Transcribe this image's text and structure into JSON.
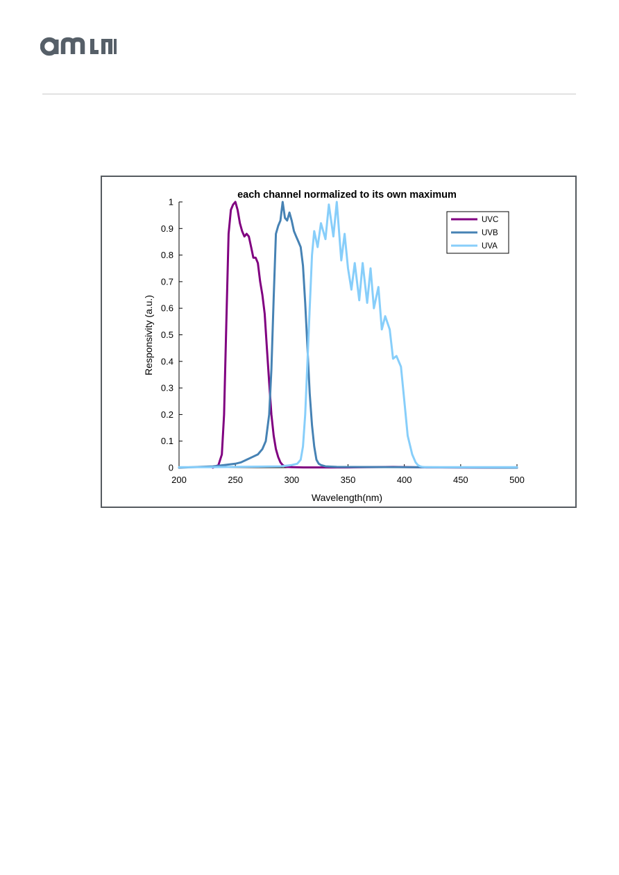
{
  "logo": {
    "text": "ams",
    "color": "#565f68"
  },
  "colors": {
    "rule": "#c8c8c8",
    "frame": "#555a5f"
  },
  "chart_data": {
    "type": "line",
    "title": "each channel normalized to its own maximum",
    "xlabel": "Wavelength(nm)",
    "ylabel": "Responsivity (a.u.)",
    "xlim": [
      200,
      500
    ],
    "ylim": [
      0,
      1
    ],
    "xticks": [
      200,
      250,
      300,
      350,
      400,
      450,
      500
    ],
    "yticks": [
      0,
      0.1,
      0.2,
      0.3,
      0.4,
      0.5,
      0.6,
      0.7,
      0.8,
      0.9,
      1
    ],
    "ytick_labels": [
      "0",
      "0.1",
      "0.2",
      "0.3",
      "0.4",
      "0.5",
      "0.6",
      "0.7",
      "0.8",
      "0.9",
      "1"
    ],
    "grid": false,
    "legend_position": "top-right",
    "series": [
      {
        "name": "UVC",
        "color": "#800080",
        "x": [
          230,
          235,
          238,
          240,
          242,
          244,
          246,
          248,
          250,
          252,
          254,
          256,
          258,
          260,
          262,
          264,
          266,
          268,
          270,
          272,
          274,
          276,
          278,
          280,
          282,
          284,
          286,
          288,
          290,
          292,
          294,
          296,
          300,
          310,
          320,
          350,
          390,
          420,
          500
        ],
        "y": [
          0,
          0.01,
          0.05,
          0.2,
          0.55,
          0.88,
          0.97,
          0.99,
          1.0,
          0.97,
          0.92,
          0.89,
          0.87,
          0.88,
          0.87,
          0.83,
          0.79,
          0.79,
          0.77,
          0.7,
          0.65,
          0.58,
          0.45,
          0.32,
          0.2,
          0.12,
          0.07,
          0.04,
          0.02,
          0.01,
          0.005,
          0.003,
          0.002,
          0.001,
          0.001,
          0.001,
          0.003,
          0.001,
          0
        ]
      },
      {
        "name": "UVB",
        "color": "#4682b4",
        "x": [
          200,
          230,
          240,
          250,
          255,
          260,
          265,
          270,
          274,
          277,
          280,
          282,
          284,
          286,
          288,
          290,
          292,
          294,
          296,
          298,
          300,
          302,
          304,
          306,
          308,
          310,
          312,
          314,
          316,
          318,
          320,
          322,
          324,
          326,
          330,
          340,
          400,
          500
        ],
        "y": [
          0,
          0.005,
          0.01,
          0.015,
          0.02,
          0.03,
          0.04,
          0.05,
          0.07,
          0.1,
          0.2,
          0.37,
          0.64,
          0.88,
          0.91,
          0.93,
          1.0,
          0.94,
          0.93,
          0.96,
          0.93,
          0.89,
          0.87,
          0.85,
          0.83,
          0.76,
          0.62,
          0.45,
          0.28,
          0.16,
          0.08,
          0.03,
          0.015,
          0.01,
          0.005,
          0.003,
          0.002,
          0
        ]
      },
      {
        "name": "UVA",
        "color": "#87cefa",
        "x": [
          200,
          230,
          290,
          300,
          305,
          308,
          310,
          312,
          314,
          316,
          318,
          320,
          323,
          326,
          330,
          333,
          337,
          340,
          344,
          347,
          350,
          353,
          356,
          360,
          363,
          367,
          370,
          373,
          377,
          380,
          383,
          387,
          390,
          393,
          397,
          400,
          403,
          407,
          410,
          412,
          414,
          416,
          418,
          420,
          423,
          430,
          440,
          500
        ],
        "y": [
          0.002,
          0.002,
          0.005,
          0.01,
          0.015,
          0.03,
          0.08,
          0.2,
          0.4,
          0.6,
          0.8,
          0.89,
          0.83,
          0.92,
          0.86,
          0.99,
          0.87,
          1.0,
          0.78,
          0.88,
          0.75,
          0.67,
          0.77,
          0.63,
          0.77,
          0.62,
          0.75,
          0.6,
          0.68,
          0.52,
          0.57,
          0.52,
          0.41,
          0.42,
          0.38,
          0.25,
          0.12,
          0.05,
          0.02,
          0.01,
          0.005,
          0.003,
          0.002,
          0.002,
          0.002,
          0.002,
          0.002,
          0.002
        ]
      }
    ]
  }
}
